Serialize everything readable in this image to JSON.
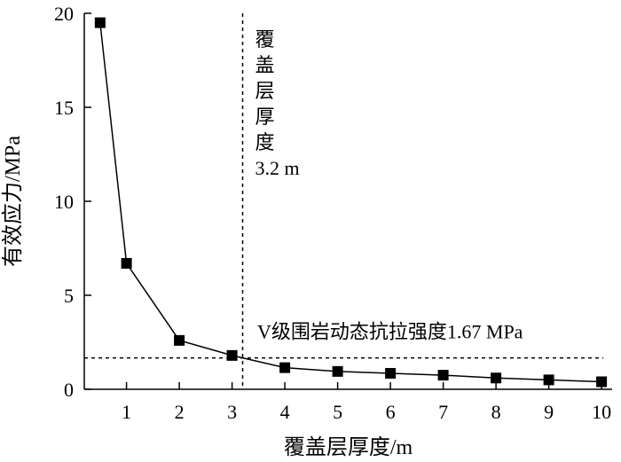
{
  "chart_data": {
    "type": "line",
    "xlabel": "覆盖层厚度/m",
    "ylabel": "有效应力/MPa",
    "xlim": [
      0.2,
      10.2
    ],
    "ylim": [
      0,
      20
    ],
    "x_ticks": [
      1,
      2,
      3,
      4,
      5,
      6,
      7,
      8,
      9,
      10
    ],
    "y_ticks": [
      0,
      5,
      10,
      15,
      20
    ],
    "x": [
      0.5,
      1,
      2,
      3,
      4,
      5,
      6,
      7,
      8,
      9,
      10
    ],
    "series": [
      {
        "values": [
          19.5,
          6.7,
          2.6,
          1.8,
          1.15,
          0.95,
          0.85,
          0.75,
          0.6,
          0.5,
          0.4
        ],
        "marker": "square",
        "color": "#000000"
      }
    ],
    "reference_lines": {
      "vertical": {
        "x": 3.2,
        "label_lines": [
          "覆",
          "盖",
          "层",
          "厚",
          "度",
          "3.2 m"
        ]
      },
      "horizontal": {
        "y": 1.67,
        "label": "V级围岩动态抗拉强度1.67 MPa"
      }
    },
    "grid": false,
    "legend": "none"
  }
}
